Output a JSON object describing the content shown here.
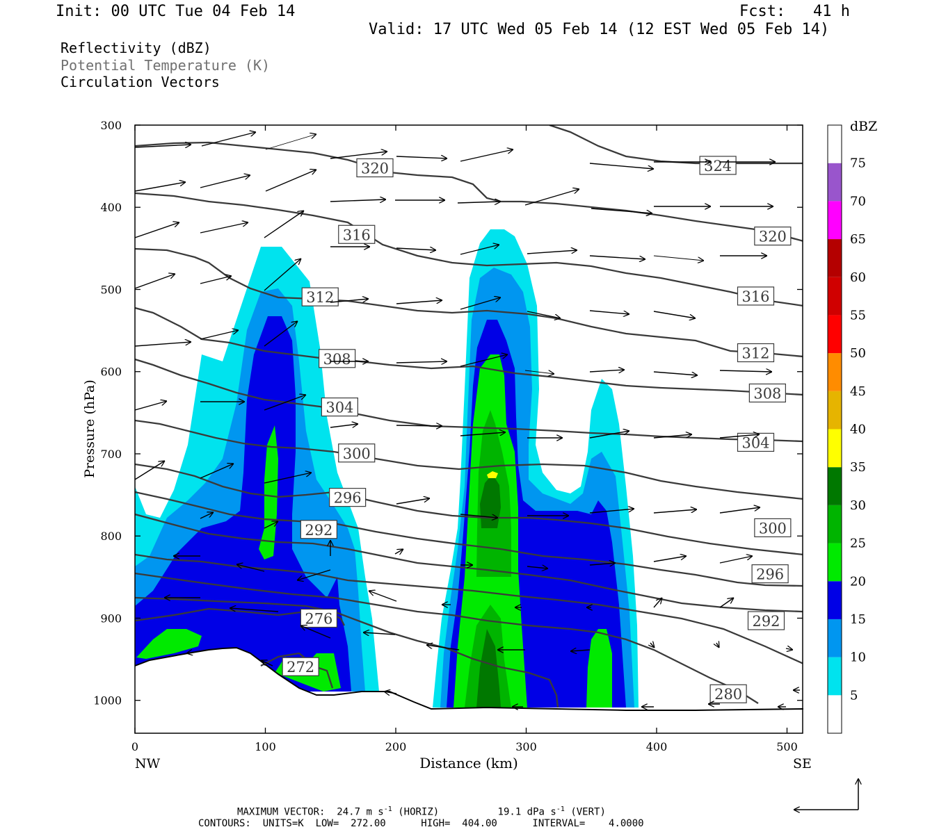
{
  "header": {
    "init": "Init: 00 UTC Tue 04 Feb 14",
    "fcst": "Fcst:   41 h",
    "valid": "Valid: 17 UTC Wed 05 Feb 14 (12 EST Wed 05 Feb 14)"
  },
  "fields": [
    "Reflectivity (dBZ)",
    "Potential Temperature (K)",
    "Circulation Vectors"
  ],
  "footer": {
    "max_vector_label": "MAXIMUM VECTOR:",
    "horiz": "24.7 m s",
    "horiz_unit": "(HORIZ)",
    "vert": "19.1 dPa s",
    "vert_unit": "(VERT)",
    "exp": "-1",
    "contours": "CONTOURS:  UNITS=K  LOW=  272.00      HIGH=  404.00      INTERVAL=    4.0000"
  },
  "colors": {
    "theta_line": "#3a3a3a",
    "frame": "#000000",
    "scale": [
      "#ffffff",
      "#00e3ee",
      "#0096f0",
      "#0000e6",
      "#00ea00",
      "#00b400",
      "#007800",
      "#ffff00",
      "#e6b400",
      "#ff8c00",
      "#ff0000",
      "#d00000",
      "#b40000",
      "#ff00ff",
      "#9955cc",
      "#ffffff"
    ]
  },
  "chart_data": {
    "type": "cross-section",
    "xlabel": "Distance (km)",
    "ylabel": "Pressure (hPa)",
    "xlim": [
      0,
      512
    ],
    "ylim": [
      1040,
      300
    ],
    "x_ticks": [
      0,
      100,
      200,
      300,
      400,
      500
    ],
    "y_ticks": [
      300,
      400,
      500,
      600,
      700,
      800,
      900,
      1000
    ],
    "x_end_labels": {
      "left": "NW",
      "right": "SE"
    },
    "colorbar": {
      "title": "dBZ",
      "levels": [
        5,
        10,
        15,
        20,
        25,
        30,
        35,
        40,
        45,
        50,
        55,
        60,
        65,
        70,
        75
      ]
    },
    "theta_contours_K": [
      272,
      276,
      280,
      292,
      296,
      300,
      304,
      308,
      312,
      316,
      320,
      324
    ],
    "theta_labels": [
      {
        "text": "320",
        "x": 184,
        "p": 352
      },
      {
        "text": "324",
        "x": 447,
        "p": 349
      },
      {
        "text": "316",
        "x": 170,
        "p": 433
      },
      {
        "text": "320",
        "x": 489,
        "p": 435
      },
      {
        "text": "312",
        "x": 142,
        "p": 509
      },
      {
        "text": "316",
        "x": 476,
        "p": 508
      },
      {
        "text": "308",
        "x": 155,
        "p": 584
      },
      {
        "text": "312",
        "x": 476,
        "p": 577
      },
      {
        "text": "304",
        "x": 157,
        "p": 643
      },
      {
        "text": "308",
        "x": 485,
        "p": 626
      },
      {
        "text": "300",
        "x": 170,
        "p": 699
      },
      {
        "text": "304",
        "x": 476,
        "p": 686
      },
      {
        "text": "296",
        "x": 163,
        "p": 753
      },
      {
        "text": "300",
        "x": 489,
        "p": 790
      },
      {
        "text": "292",
        "x": 141,
        "p": 792
      },
      {
        "text": "296",
        "x": 487,
        "p": 846
      },
      {
        "text": "276",
        "x": 141,
        "p": 900
      },
      {
        "text": "292",
        "x": 484,
        "p": 903
      },
      {
        "text": "272",
        "x": 127,
        "p": 959
      },
      {
        "text": "280",
        "x": 455,
        "p": 992
      }
    ]
  }
}
